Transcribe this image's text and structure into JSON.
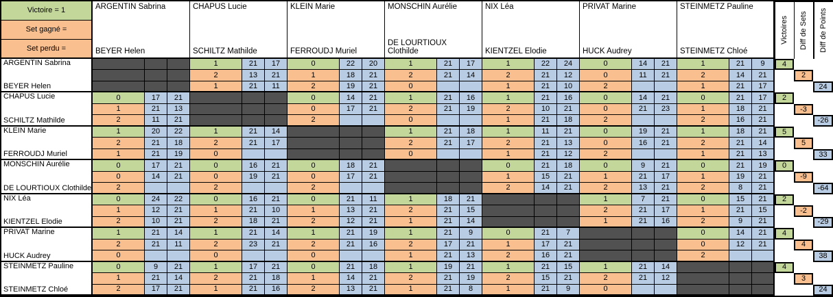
{
  "colors": {
    "green": "#c4d79b",
    "orange": "#fabf8f",
    "blue": "#b8cce4",
    "dark": "#515151"
  },
  "legend": [
    {
      "label": "Victoire = 1",
      "color": "green"
    },
    {
      "label": "Set gagné =",
      "color": "orange"
    },
    {
      "label": "Set perdu =",
      "color": "orange"
    }
  ],
  "summary_headers": [
    "Victoires",
    "Diff de Sets",
    "Diff de Points"
  ],
  "teams": [
    [
      "ARGENTIN Sabrina",
      "BEYER Helen"
    ],
    [
      "CHAPUS Lucie",
      "SCHILTZ Mathilde"
    ],
    [
      "KLEIN Marie",
      "FERROUDJ Muriel"
    ],
    [
      "MONSCHIN Aurélie",
      "DE LOURTIOUX Clothilde"
    ],
    [
      "NIX Léa",
      "KIENTZEL Elodie"
    ],
    [
      "PRIVAT Marine",
      "HUCK Audrey"
    ],
    [
      "STEINMETZ Pauline",
      "STEINMETZ Chloé"
    ]
  ],
  "blocks": [
    {
      "victoires": "4",
      "diff_sets": "2",
      "diff_points": "24",
      "cells": [
        null,
        [
          [
            "1",
            "21",
            "17"
          ],
          [
            "2",
            "13",
            "21"
          ],
          [
            "1",
            "21",
            "11"
          ]
        ],
        [
          [
            "0",
            "22",
            "20"
          ],
          [
            "1",
            "18",
            "21"
          ],
          [
            "2",
            "19",
            "21"
          ]
        ],
        [
          [
            "1",
            "21",
            "17"
          ],
          [
            "2",
            "21",
            "14"
          ],
          [
            "0",
            "",
            ""
          ]
        ],
        [
          [
            "1",
            "22",
            "24"
          ],
          [
            "2",
            "21",
            "12"
          ],
          [
            "1",
            "21",
            "10"
          ]
        ],
        [
          [
            "0",
            "14",
            "21"
          ],
          [
            "0",
            "11",
            "21"
          ],
          [
            "2",
            "",
            ""
          ]
        ],
        [
          [
            "1",
            "21",
            "9"
          ],
          [
            "2",
            "14",
            "21"
          ],
          [
            "1",
            "21",
            "17"
          ]
        ]
      ]
    },
    {
      "victoires": "2",
      "diff_sets": "-3",
      "diff_points": "-26",
      "cells": [
        [
          [
            "0",
            "17",
            "21"
          ],
          [
            "1",
            "21",
            "13"
          ],
          [
            "2",
            "11",
            "21"
          ]
        ],
        null,
        [
          [
            "0",
            "14",
            "21"
          ],
          [
            "0",
            "17",
            "21"
          ],
          [
            "2",
            "",
            ""
          ]
        ],
        [
          [
            "1",
            "21",
            "16"
          ],
          [
            "2",
            "21",
            "19"
          ],
          [
            "0",
            "",
            ""
          ]
        ],
        [
          [
            "1",
            "21",
            "16"
          ],
          [
            "2",
            "10",
            "21"
          ],
          [
            "1",
            "21",
            "18"
          ]
        ],
        [
          [
            "0",
            "14",
            "21"
          ],
          [
            "0",
            "21",
            "23"
          ],
          [
            "2",
            "",
            ""
          ]
        ],
        [
          [
            "0",
            "21",
            "17"
          ],
          [
            "1",
            "18",
            "21"
          ],
          [
            "2",
            "16",
            "21"
          ]
        ]
      ]
    },
    {
      "victoires": "5",
      "diff_sets": "5",
      "diff_points": "33",
      "cells": [
        [
          [
            "1",
            "20",
            "22"
          ],
          [
            "2",
            "21",
            "18"
          ],
          [
            "1",
            "21",
            "19"
          ]
        ],
        [
          [
            "1",
            "21",
            "14"
          ],
          [
            "2",
            "21",
            "17"
          ],
          [
            "0",
            "",
            ""
          ]
        ],
        null,
        [
          [
            "1",
            "21",
            "18"
          ],
          [
            "2",
            "21",
            "17"
          ],
          [
            "0",
            "",
            ""
          ]
        ],
        [
          [
            "1",
            "11",
            "21"
          ],
          [
            "2",
            "21",
            "13"
          ],
          [
            "1",
            "21",
            "12"
          ]
        ],
        [
          [
            "0",
            "19",
            "21"
          ],
          [
            "0",
            "16",
            "21"
          ],
          [
            "2",
            "",
            ""
          ]
        ],
        [
          [
            "1",
            "18",
            "21"
          ],
          [
            "2",
            "21",
            "14"
          ],
          [
            "1",
            "21",
            "13"
          ]
        ]
      ]
    },
    {
      "victoires": "0",
      "diff_sets": "-9",
      "diff_points": "-64",
      "cells": [
        [
          [
            "0",
            "17",
            "21"
          ],
          [
            "0",
            "14",
            "21"
          ],
          [
            "2",
            "",
            ""
          ]
        ],
        [
          [
            "0",
            "16",
            "21"
          ],
          [
            "0",
            "19",
            "21"
          ],
          [
            "2",
            "",
            ""
          ]
        ],
        [
          [
            "0",
            "18",
            "21"
          ],
          [
            "0",
            "17",
            "21"
          ],
          [
            "2",
            "",
            ""
          ]
        ],
        null,
        [
          [
            "0",
            "21",
            "18"
          ],
          [
            "1",
            "15",
            "21"
          ],
          [
            "2",
            "14",
            "21"
          ]
        ],
        [
          [
            "0",
            "9",
            "21"
          ],
          [
            "1",
            "21",
            "17"
          ],
          [
            "2",
            "13",
            "21"
          ]
        ],
        [
          [
            "0",
            "21",
            "19"
          ],
          [
            "1",
            "19",
            "21"
          ],
          [
            "2",
            "8",
            "21"
          ]
        ]
      ]
    },
    {
      "victoires": "2",
      "diff_sets": "-2",
      "diff_points": "-29",
      "cells": [
        [
          [
            "0",
            "24",
            "22"
          ],
          [
            "1",
            "12",
            "21"
          ],
          [
            "2",
            "10",
            "21"
          ]
        ],
        [
          [
            "0",
            "16",
            "21"
          ],
          [
            "1",
            "21",
            "10"
          ],
          [
            "2",
            "18",
            "21"
          ]
        ],
        [
          [
            "0",
            "21",
            "11"
          ],
          [
            "1",
            "13",
            "21"
          ],
          [
            "2",
            "12",
            "21"
          ]
        ],
        [
          [
            "1",
            "18",
            "21"
          ],
          [
            "2",
            "21",
            "15"
          ],
          [
            "1",
            "21",
            "14"
          ]
        ],
        null,
        [
          [
            "1",
            "7",
            "21"
          ],
          [
            "2",
            "21",
            "17"
          ],
          [
            "1",
            "21",
            "16"
          ]
        ],
        [
          [
            "0",
            "15",
            "21"
          ],
          [
            "1",
            "21",
            "15"
          ],
          [
            "2",
            "9",
            "21"
          ]
        ]
      ]
    },
    {
      "victoires": "4",
      "diff_sets": "4",
      "diff_points": "38",
      "cells": [
        [
          [
            "1",
            "21",
            "14"
          ],
          [
            "2",
            "21",
            "11"
          ],
          [
            "0",
            "",
            ""
          ]
        ],
        [
          [
            "1",
            "21",
            "14"
          ],
          [
            "2",
            "23",
            "21"
          ],
          [
            "0",
            "",
            ""
          ]
        ],
        [
          [
            "1",
            "21",
            "19"
          ],
          [
            "2",
            "21",
            "16"
          ],
          [
            "0",
            "",
            ""
          ]
        ],
        [
          [
            "1",
            "21",
            "9"
          ],
          [
            "2",
            "17",
            "21"
          ],
          [
            "1",
            "21",
            "13"
          ]
        ],
        [
          [
            "0",
            "21",
            "7"
          ],
          [
            "1",
            "17",
            "21"
          ],
          [
            "2",
            "16",
            "21"
          ]
        ],
        null,
        [
          [
            "0",
            "14",
            "21"
          ],
          [
            "0",
            "12",
            "21"
          ],
          [
            "2",
            "",
            ""
          ]
        ]
      ]
    },
    {
      "victoires": "4",
      "diff_sets": "3",
      "diff_points": "24",
      "cells": [
        [
          [
            "0",
            "9",
            "21"
          ],
          [
            "1",
            "21",
            "14"
          ],
          [
            "2",
            "17",
            "21"
          ]
        ],
        [
          [
            "1",
            "17",
            "21"
          ],
          [
            "2",
            "21",
            "18"
          ],
          [
            "1",
            "21",
            "16"
          ]
        ],
        [
          [
            "0",
            "21",
            "18"
          ],
          [
            "1",
            "14",
            "21"
          ],
          [
            "2",
            "13",
            "21"
          ]
        ],
        [
          [
            "1",
            "19",
            "21"
          ],
          [
            "2",
            "21",
            "19"
          ],
          [
            "1",
            "21",
            "8"
          ]
        ],
        [
          [
            "1",
            "21",
            "15"
          ],
          [
            "2",
            "15",
            "21"
          ],
          [
            "1",
            "21",
            "9"
          ]
        ],
        [
          [
            "1",
            "21",
            "14"
          ],
          [
            "2",
            "21",
            "12"
          ],
          [
            "0",
            "",
            ""
          ]
        ],
        null
      ]
    }
  ]
}
